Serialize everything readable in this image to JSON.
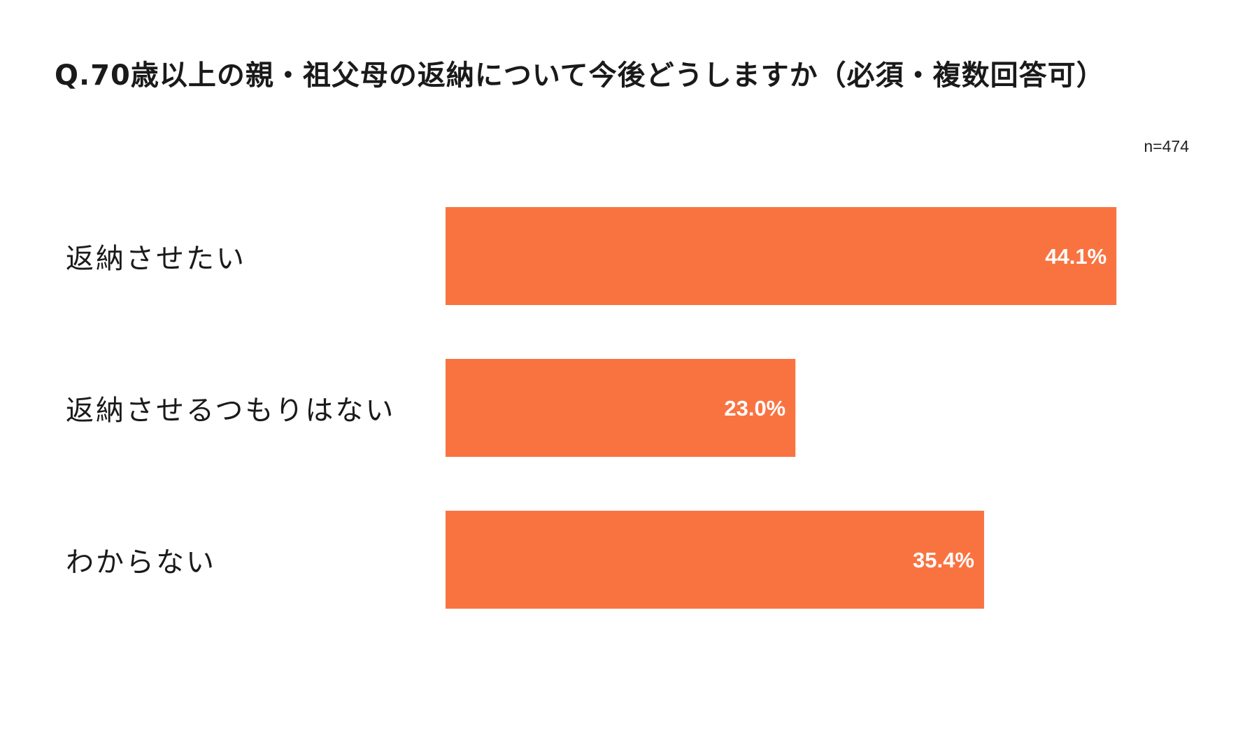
{
  "chart_data": {
    "type": "bar",
    "orientation": "horizontal",
    "title": "Q.70歳以上の親・祖父母の返納について今後どうしますか（必須・複数回答可）",
    "sample_size": "n=474",
    "categories": [
      "返納させたい",
      "返納させるつもりはない",
      "わからない"
    ],
    "values": [
      44.1,
      23.0,
      35.4
    ],
    "value_labels": [
      "44.1%",
      "23.0%",
      "35.4%"
    ],
    "xlim": [
      0,
      50
    ],
    "grid": false,
    "legend": "none",
    "bar_color": "#F97341",
    "value_label_color": "#FFFFFF"
  }
}
